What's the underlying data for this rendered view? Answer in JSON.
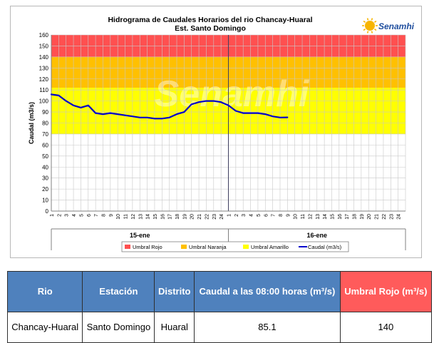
{
  "chart_data": {
    "type": "line",
    "title": "Hidrograma de Caudales Horarios del rio Chancay-Huaral",
    "subtitle": "Est. Santo Domingo",
    "logo_text": "Senamhi",
    "watermark_text": "Senamhi",
    "xlabel": "",
    "ylabel": "Caudal  (m3/s)",
    "ylim": [
      0,
      160
    ],
    "yticks": [
      0,
      10,
      20,
      30,
      40,
      50,
      60,
      70,
      80,
      90,
      100,
      110,
      120,
      130,
      140,
      150,
      160
    ],
    "grid": true,
    "x_tick_labels": [
      "1",
      "2",
      "3",
      "4",
      "5",
      "6",
      "7",
      "8",
      "9",
      "10",
      "11",
      "12",
      "13",
      "14",
      "15",
      "16",
      "17",
      "18",
      "19",
      "20",
      "21",
      "22",
      "23",
      "24",
      "1",
      "2",
      "3",
      "4",
      "5",
      "6",
      "7",
      "8",
      "9",
      "10",
      "11",
      "12",
      "13",
      "14",
      "15",
      "16",
      "17",
      "18",
      "19",
      "20",
      "21",
      "22",
      "23",
      "24"
    ],
    "day_labels": [
      "15-ene",
      "16-ene"
    ],
    "thresholds": [
      {
        "name": "Umbral Rojo",
        "from": 140,
        "to": 160,
        "color": "#ff5050"
      },
      {
        "name": "Umbral Naranja",
        "from": 112,
        "to": 140,
        "color": "#ffc000"
      },
      {
        "name": "Umbral Amarillo",
        "from": 70,
        "to": 112,
        "color": "#ffff00"
      }
    ],
    "series": [
      {
        "name": "Caudal (m3/s)",
        "color": "#0000cc",
        "x": [
          0,
          1,
          2,
          3,
          4,
          5,
          6,
          7,
          8,
          9,
          10,
          11,
          12,
          13,
          14,
          15,
          16,
          17,
          18,
          19,
          20,
          21,
          22,
          23,
          24,
          25,
          26,
          27,
          28,
          29,
          30,
          31,
          32
        ],
        "values": [
          106,
          105,
          100,
          96,
          94,
          96,
          89,
          88,
          89,
          88,
          87,
          86,
          85,
          85,
          84,
          84,
          85,
          88,
          90,
          97,
          99,
          100,
          100,
          99,
          96,
          91,
          89,
          89,
          89,
          88,
          86,
          85,
          85.1
        ]
      }
    ],
    "legend_position": "bottom"
  },
  "table": {
    "headers": [
      {
        "label": "Rio",
        "highlight": false
      },
      {
        "label": "Estación",
        "highlight": false
      },
      {
        "label": "Distrito",
        "highlight": false
      },
      {
        "label": "Caudal a las 08:00 horas (m³/s)",
        "highlight": false
      },
      {
        "label": "Umbral Rojo (m³/s)",
        "highlight": true
      }
    ],
    "row": [
      "Chancay-Huaral",
      "Santo Domingo",
      "Huaral",
      "85.1",
      "140"
    ]
  }
}
